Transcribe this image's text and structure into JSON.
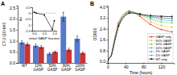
{
  "chart_data": [
    {
      "type": "bar",
      "title": "A",
      "categories": [
        "WT",
        "10%\nGASP",
        "50%\nGASP",
        "90%\nGASP",
        "100%\nGASP"
      ],
      "series": [
        {
          "color": "#5577cc",
          "values": [
            0.93,
            0.78,
            0.42,
            2.1,
            1.1
          ],
          "errors": [
            0.07,
            0.07,
            0.05,
            0.2,
            0.12
          ]
        },
        {
          "color": "#cc3333",
          "values": [
            0.85,
            0.72,
            0.5,
            0.6,
            0.45
          ],
          "errors": [
            0.06,
            0.06,
            0.04,
            0.07,
            0.05
          ]
        }
      ],
      "ylabel": "CFU (10⁹/ml)",
      "ylim": [
        0,
        2.6
      ],
      "yticks": [
        {
          "value": 0,
          "label": "0.0"
        },
        0.5,
        {
          "value": 1.0,
          "label": "1.0"
        },
        1.5,
        {
          "value": 2.0,
          "label": "2.0"
        },
        2.5
      ]
    },
    {
      "type": "line",
      "x": [
        0.0,
        0.1,
        0.5,
        0.9,
        1.0
      ],
      "series": [
        {
          "color": "#000000",
          "marker": "square",
          "line_style": "solid",
          "values": [
            0.08,
            0.0,
            -0.15,
            -1.4,
            -0.65
          ]
        }
      ],
      "hlines": [
        0
      ],
      "xlabel": "initial GASP fraction",
      "ylabel": "Δn",
      "xlim": [
        -0.1,
        1.1
      ],
      "xticks": [
        {
          "value": 0,
          "label": "0.0"
        },
        0.5,
        {
          "value": 1.0,
          "label": "1.0"
        }
      ],
      "ylim": [
        -1.5,
        0.5
      ],
      "yticks": [
        -1.5,
        -1,
        -0.5,
        0,
        0.5
      ]
    },
    {
      "type": "line",
      "title": "B",
      "x": [
        0,
        8,
        16,
        24,
        32,
        40,
        48,
        56,
        64,
        72,
        80,
        88,
        96,
        104,
        112,
        120,
        128,
        136,
        144
      ],
      "series": [
        {
          "name": "GASP only",
          "color": "#ee2222",
          "marker": "circle",
          "line_style": "solid",
          "values": [
            0.1,
            0.5,
            1.8,
            2.85,
            3.35,
            3.6,
            3.72,
            3.65,
            3.5,
            3.32,
            3.1,
            2.9,
            2.72,
            2.58,
            2.45,
            2.35,
            2.28,
            2.22,
            2.18
          ]
        },
        {
          "name": "90% GASP",
          "color": "#ddbb00",
          "marker": "circle",
          "line_style": "dashed",
          "values": [
            0.1,
            0.48,
            1.75,
            2.8,
            3.3,
            3.58,
            3.7,
            3.65,
            3.52,
            3.38,
            3.2,
            3.05,
            2.92,
            2.82,
            2.72,
            2.65,
            2.6,
            2.55,
            2.52
          ]
        },
        {
          "name": "50% GASP",
          "color": "#66bb22",
          "marker": "circle",
          "line_style": "dashed",
          "values": [
            0.1,
            0.46,
            1.7,
            2.75,
            3.25,
            3.55,
            3.68,
            3.65,
            3.55,
            3.45,
            3.32,
            3.2,
            3.1,
            3.02,
            2.95,
            2.9,
            2.87,
            2.85,
            2.83
          ]
        },
        {
          "name": "10% GASP",
          "color": "#3399dd",
          "marker": "circle",
          "line_style": "dashed",
          "values": [
            0.1,
            0.44,
            1.65,
            2.7,
            3.2,
            3.5,
            3.65,
            3.62,
            3.56,
            3.48,
            3.38,
            3.3,
            3.22,
            3.16,
            3.1,
            3.06,
            3.03,
            3.01,
            3.0
          ]
        },
        {
          "name": "2% GASP",
          "color": "#9966cc",
          "marker": "circle",
          "line_style": "dashed",
          "values": [
            0.1,
            0.43,
            1.62,
            2.68,
            3.18,
            3.48,
            3.62,
            3.6,
            3.55,
            3.48,
            3.4,
            3.34,
            3.28,
            3.24,
            3.2,
            3.17,
            3.15,
            3.14,
            3.13
          ]
        },
        {
          "name": "1% GASP",
          "color": "#22aa77",
          "marker": "circle",
          "line_style": "dashed",
          "values": [
            0.1,
            0.42,
            1.6,
            2.65,
            3.15,
            3.45,
            3.6,
            3.58,
            3.54,
            3.48,
            3.41,
            3.36,
            3.31,
            3.28,
            3.25,
            3.22,
            3.2,
            3.19,
            3.18
          ]
        },
        {
          "name": "WT only",
          "color": "#111111",
          "marker": "square",
          "line_style": "solid",
          "values": [
            0.1,
            0.4,
            1.55,
            2.6,
            3.1,
            3.4,
            3.55,
            3.55,
            3.52,
            3.48,
            3.43,
            3.4,
            3.37,
            3.35,
            3.33,
            3.32,
            3.31,
            3.3,
            3.3
          ]
        }
      ],
      "xlabel": "Time (hours)",
      "ylabel": "OD600",
      "xlim": [
        0,
        148
      ],
      "xticks": [
        0,
        40,
        80,
        120
      ],
      "ylim": [
        -0.1,
        4.1
      ],
      "yticks": [
        {
          "value": 0,
          "label": "0.0"
        },
        0.8,
        1.6,
        2.4,
        3.2,
        {
          "value": 4.0,
          "label": "4.0"
        }
      ],
      "legend": "lower right"
    }
  ]
}
